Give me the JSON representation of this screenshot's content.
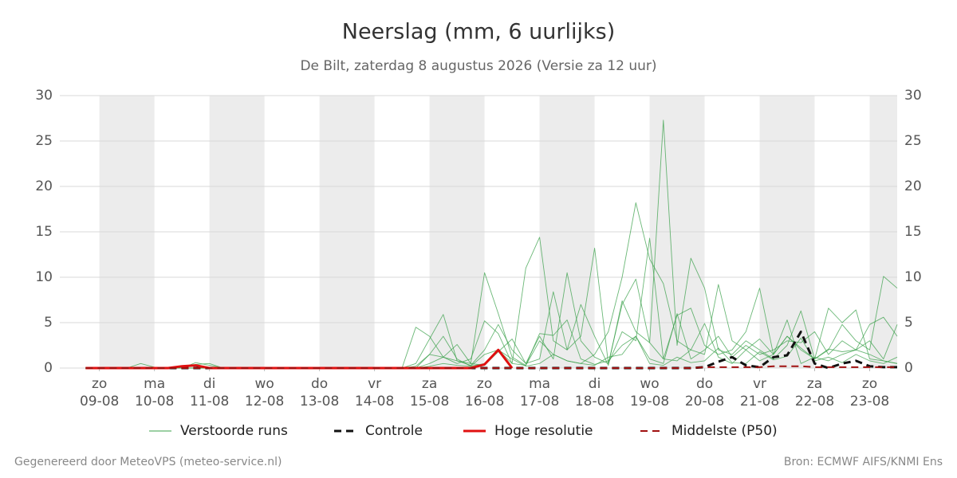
{
  "chart_data": {
    "type": "line",
    "title": "Neerslag (mm, 6 uurlijks)",
    "subtitle": "De Bilt, zaterdag  8 augustus 2026 (Versie za 12 uur)",
    "credit": "Gegenereerd door MeteoVPS (meteo-service.nl)",
    "source": "Bron: ECMWF AIFS/KNMI Ens",
    "grid": true,
    "ylim": [
      0,
      30
    ],
    "yticks": [
      0,
      5,
      10,
      15,
      20,
      25,
      30
    ],
    "xlim": [
      -0.72,
      14.5
    ],
    "xticks": [
      {
        "value": 0,
        "label": [
          "zo",
          "09-08"
        ]
      },
      {
        "value": 1,
        "label": [
          "ma",
          "10-08"
        ]
      },
      {
        "value": 2,
        "label": [
          "di",
          "11-08"
        ]
      },
      {
        "value": 3,
        "label": [
          "wo",
          "12-08"
        ]
      },
      {
        "value": 4,
        "label": [
          "do",
          "13-08"
        ]
      },
      {
        "value": 5,
        "label": [
          "vr",
          "14-08"
        ]
      },
      {
        "value": 6,
        "label": [
          "za",
          "15-08"
        ]
      },
      {
        "value": 7,
        "label": [
          "zo",
          "16-08"
        ]
      },
      {
        "value": 8,
        "label": [
          "ma",
          "17-08"
        ]
      },
      {
        "value": 9,
        "label": [
          "di",
          "18-08"
        ]
      },
      {
        "value": 10,
        "label": [
          "wo",
          "19-08"
        ]
      },
      {
        "value": 11,
        "label": [
          "do",
          "20-08"
        ]
      },
      {
        "value": 12,
        "label": [
          "vr",
          "21-08"
        ]
      },
      {
        "value": 13,
        "label": [
          "za",
          "22-08"
        ]
      },
      {
        "value": 14,
        "label": [
          "zo",
          "23-08"
        ]
      }
    ],
    "x": [
      -0.25,
      0,
      0.25,
      0.5,
      0.75,
      1,
      1.25,
      1.5,
      1.75,
      2,
      2.25,
      2.5,
      2.75,
      3,
      3.25,
      3.5,
      3.75,
      4,
      4.25,
      4.5,
      4.75,
      5,
      5.25,
      5.5,
      5.75,
      6,
      6.25,
      6.5,
      6.75,
      7,
      7.25,
      7.5,
      7.75,
      8,
      8.25,
      8.5,
      8.75,
      9,
      9.25,
      9.5,
      9.75,
      10,
      10.25,
      10.5,
      10.75,
      11,
      11.25,
      11.5,
      11.75,
      12,
      12.25,
      12.5,
      12.75,
      13,
      13.25,
      13.5,
      13.75,
      14,
      14.25,
      14.5
    ],
    "series": [
      {
        "name": "Verstoorde runs",
        "color": "#3aa04a",
        "dash": false,
        "width": 0.9,
        "runs": [
          [
            0,
            0,
            0,
            0,
            0.5,
            0.1,
            0,
            0,
            0.4,
            0.5,
            0,
            0,
            0,
            0.1,
            0,
            0,
            0,
            0,
            0,
            0,
            0,
            0,
            0,
            0,
            4.5,
            3.5,
            1.2,
            0.8,
            0.5,
            10.5,
            6.0,
            1.2,
            0.3,
            3.0,
            1.5,
            0.8,
            0.5,
            1.5,
            4.0,
            10.0,
            18.2,
            12.0,
            9.3,
            3.0,
            2.0,
            1.5,
            9.2,
            3.0,
            2.0,
            3.2,
            1.5,
            3.5,
            2.0,
            1.0,
            2.1,
            1.8,
            2.0,
            1.5,
            0.8,
            0.5
          ],
          [
            0,
            0,
            0,
            0,
            0,
            0,
            0,
            0,
            0.6,
            0.3,
            0,
            0,
            0,
            0,
            0,
            0,
            0,
            0,
            0,
            0,
            0,
            0,
            0,
            0,
            0.2,
            1.5,
            1.2,
            0.5,
            1.0,
            5.2,
            3.8,
            0.5,
            11.0,
            14.4,
            3.0,
            2.0,
            3.5,
            13.2,
            0.5,
            7.0,
            9.8,
            2.8,
            27.3,
            2.5,
            12.1,
            8.8,
            2.0,
            1.5,
            3.0,
            2.0,
            1.0,
            2.5,
            6.3,
            1.0,
            6.6,
            5.0,
            6.4,
            1.0,
            0.8,
            0.5
          ],
          [
            0,
            0,
            0,
            0,
            0,
            0,
            0,
            0,
            0,
            0,
            0,
            0,
            0,
            0,
            0,
            0,
            0,
            0,
            0,
            0,
            0,
            0,
            0,
            0,
            0.5,
            3.2,
            5.9,
            0.8,
            0.3,
            2.0,
            4.8,
            2.0,
            0.5,
            3.5,
            1.0,
            10.5,
            3.0,
            1.2,
            0.5,
            4.0,
            3.0,
            14.3,
            1.0,
            5.8,
            6.6,
            2.5,
            1.5,
            2.0,
            4.0,
            8.8,
            1.5,
            3.5,
            2.2,
            1.0,
            2.0,
            4.8,
            3.0,
            2.0,
            10.1,
            8.8
          ],
          [
            0,
            0,
            0,
            0,
            0,
            0,
            0,
            0,
            0,
            0,
            0,
            0,
            0,
            0,
            0,
            0,
            0,
            0,
            0,
            0,
            0,
            0,
            0,
            0,
            0,
            1.5,
            3.5,
            1.0,
            0.2,
            1.5,
            2.0,
            0.5,
            0.3,
            3.8,
            3.6,
            5.3,
            1.0,
            0.4,
            0.8,
            2.5,
            3.5,
            1.0,
            0.5,
            6.0,
            1.0,
            2.0,
            3.5,
            1.2,
            2.5,
            1.5,
            2.0,
            3.0,
            2.8,
            4.0,
            1.5,
            3.0,
            2.0,
            4.8,
            5.6,
            3.5
          ],
          [
            0,
            0,
            0,
            0,
            0,
            0,
            0,
            0,
            0,
            0,
            0,
            0,
            0,
            0,
            0,
            0,
            0,
            0,
            0,
            0,
            0,
            0,
            0,
            0,
            0,
            0.5,
            1.2,
            2.6,
            0.5,
            0.3,
            1.8,
            3.2,
            0.5,
            1.0,
            8.4,
            2.0,
            7.0,
            3.5,
            0.3,
            7.4,
            4.0,
            2.8,
            1.0,
            0.8,
            2.0,
            4.9,
            1.2,
            0.5,
            2.0,
            0.8,
            1.5,
            5.3,
            0.5,
            1.2,
            0.8,
            1.5,
            2.0,
            3.0,
            1.0,
            4.8
          ],
          [
            0,
            0,
            0,
            0,
            0,
            0,
            0,
            0,
            0,
            0,
            0,
            0,
            0,
            0,
            0,
            0,
            0,
            0,
            0,
            0,
            0,
            0,
            0,
            0,
            0,
            0.2,
            0.5,
            0.3,
            0.2,
            0.5,
            2.0,
            1.0,
            0.2,
            0.5,
            1.5,
            0.8,
            0.5,
            0.3,
            1.2,
            1.5,
            3.5,
            0.5,
            0.3,
            1.2,
            0.6,
            0.8,
            2.2,
            0.6,
            0.5,
            1.8,
            0.9,
            1.3,
            3.3,
            0.8,
            1.2,
            0.6,
            1.5,
            0.8,
            0.5,
            1.2
          ]
        ]
      },
      {
        "name": "Controle",
        "color": "#111111",
        "dash": true,
        "width": 3,
        "values": [
          0,
          0,
          0,
          0,
          0,
          0,
          0,
          0,
          0,
          0,
          0,
          0,
          0,
          0,
          0,
          0,
          0,
          0,
          0,
          0,
          0,
          0,
          0,
          0,
          0,
          0,
          0,
          0,
          0,
          0,
          0,
          0,
          0,
          0,
          0,
          0,
          0,
          0,
          0,
          0,
          0,
          0,
          0,
          0,
          0,
          0.1,
          0.7,
          1.2,
          0.3,
          0.1,
          1.2,
          1.4,
          4.0,
          0.5,
          0,
          0.5,
          0.8,
          0.2,
          0.1,
          0.1
        ]
      },
      {
        "name": "Hoge resolutie",
        "color": "#e01010",
        "dash": false,
        "width": 3,
        "values": [
          0,
          0,
          0,
          0,
          0,
          0,
          0,
          0.2,
          0.3,
          0,
          0,
          0,
          0,
          0,
          0,
          0,
          0,
          0,
          0,
          0,
          0,
          0,
          0,
          0,
          0,
          0,
          0,
          0,
          0,
          0.4,
          2.0,
          0,
          null,
          null,
          null,
          null,
          null,
          null,
          null,
          null,
          null,
          null,
          null,
          null,
          null,
          null,
          null,
          null,
          null,
          null,
          null,
          null,
          null,
          null,
          null,
          null,
          null,
          null,
          null,
          null
        ]
      },
      {
        "name": "Middelste (P50)",
        "color": "#a01010",
        "dash": true,
        "width": 2,
        "values": [
          0,
          0,
          0,
          0,
          0,
          0,
          0,
          0,
          0,
          0,
          0,
          0,
          0,
          0,
          0,
          0,
          0,
          0,
          0,
          0,
          0,
          0,
          0,
          0,
          0,
          0,
          0,
          0,
          0,
          0,
          0,
          0,
          0,
          0,
          0,
          0,
          0,
          0,
          0,
          0,
          0,
          0,
          0,
          0,
          0,
          0.1,
          0.1,
          0.1,
          0.1,
          0.1,
          0.2,
          0.2,
          0.2,
          0.1,
          0.1,
          0.1,
          0.1,
          0.1,
          0.1,
          0.1
        ]
      }
    ]
  }
}
